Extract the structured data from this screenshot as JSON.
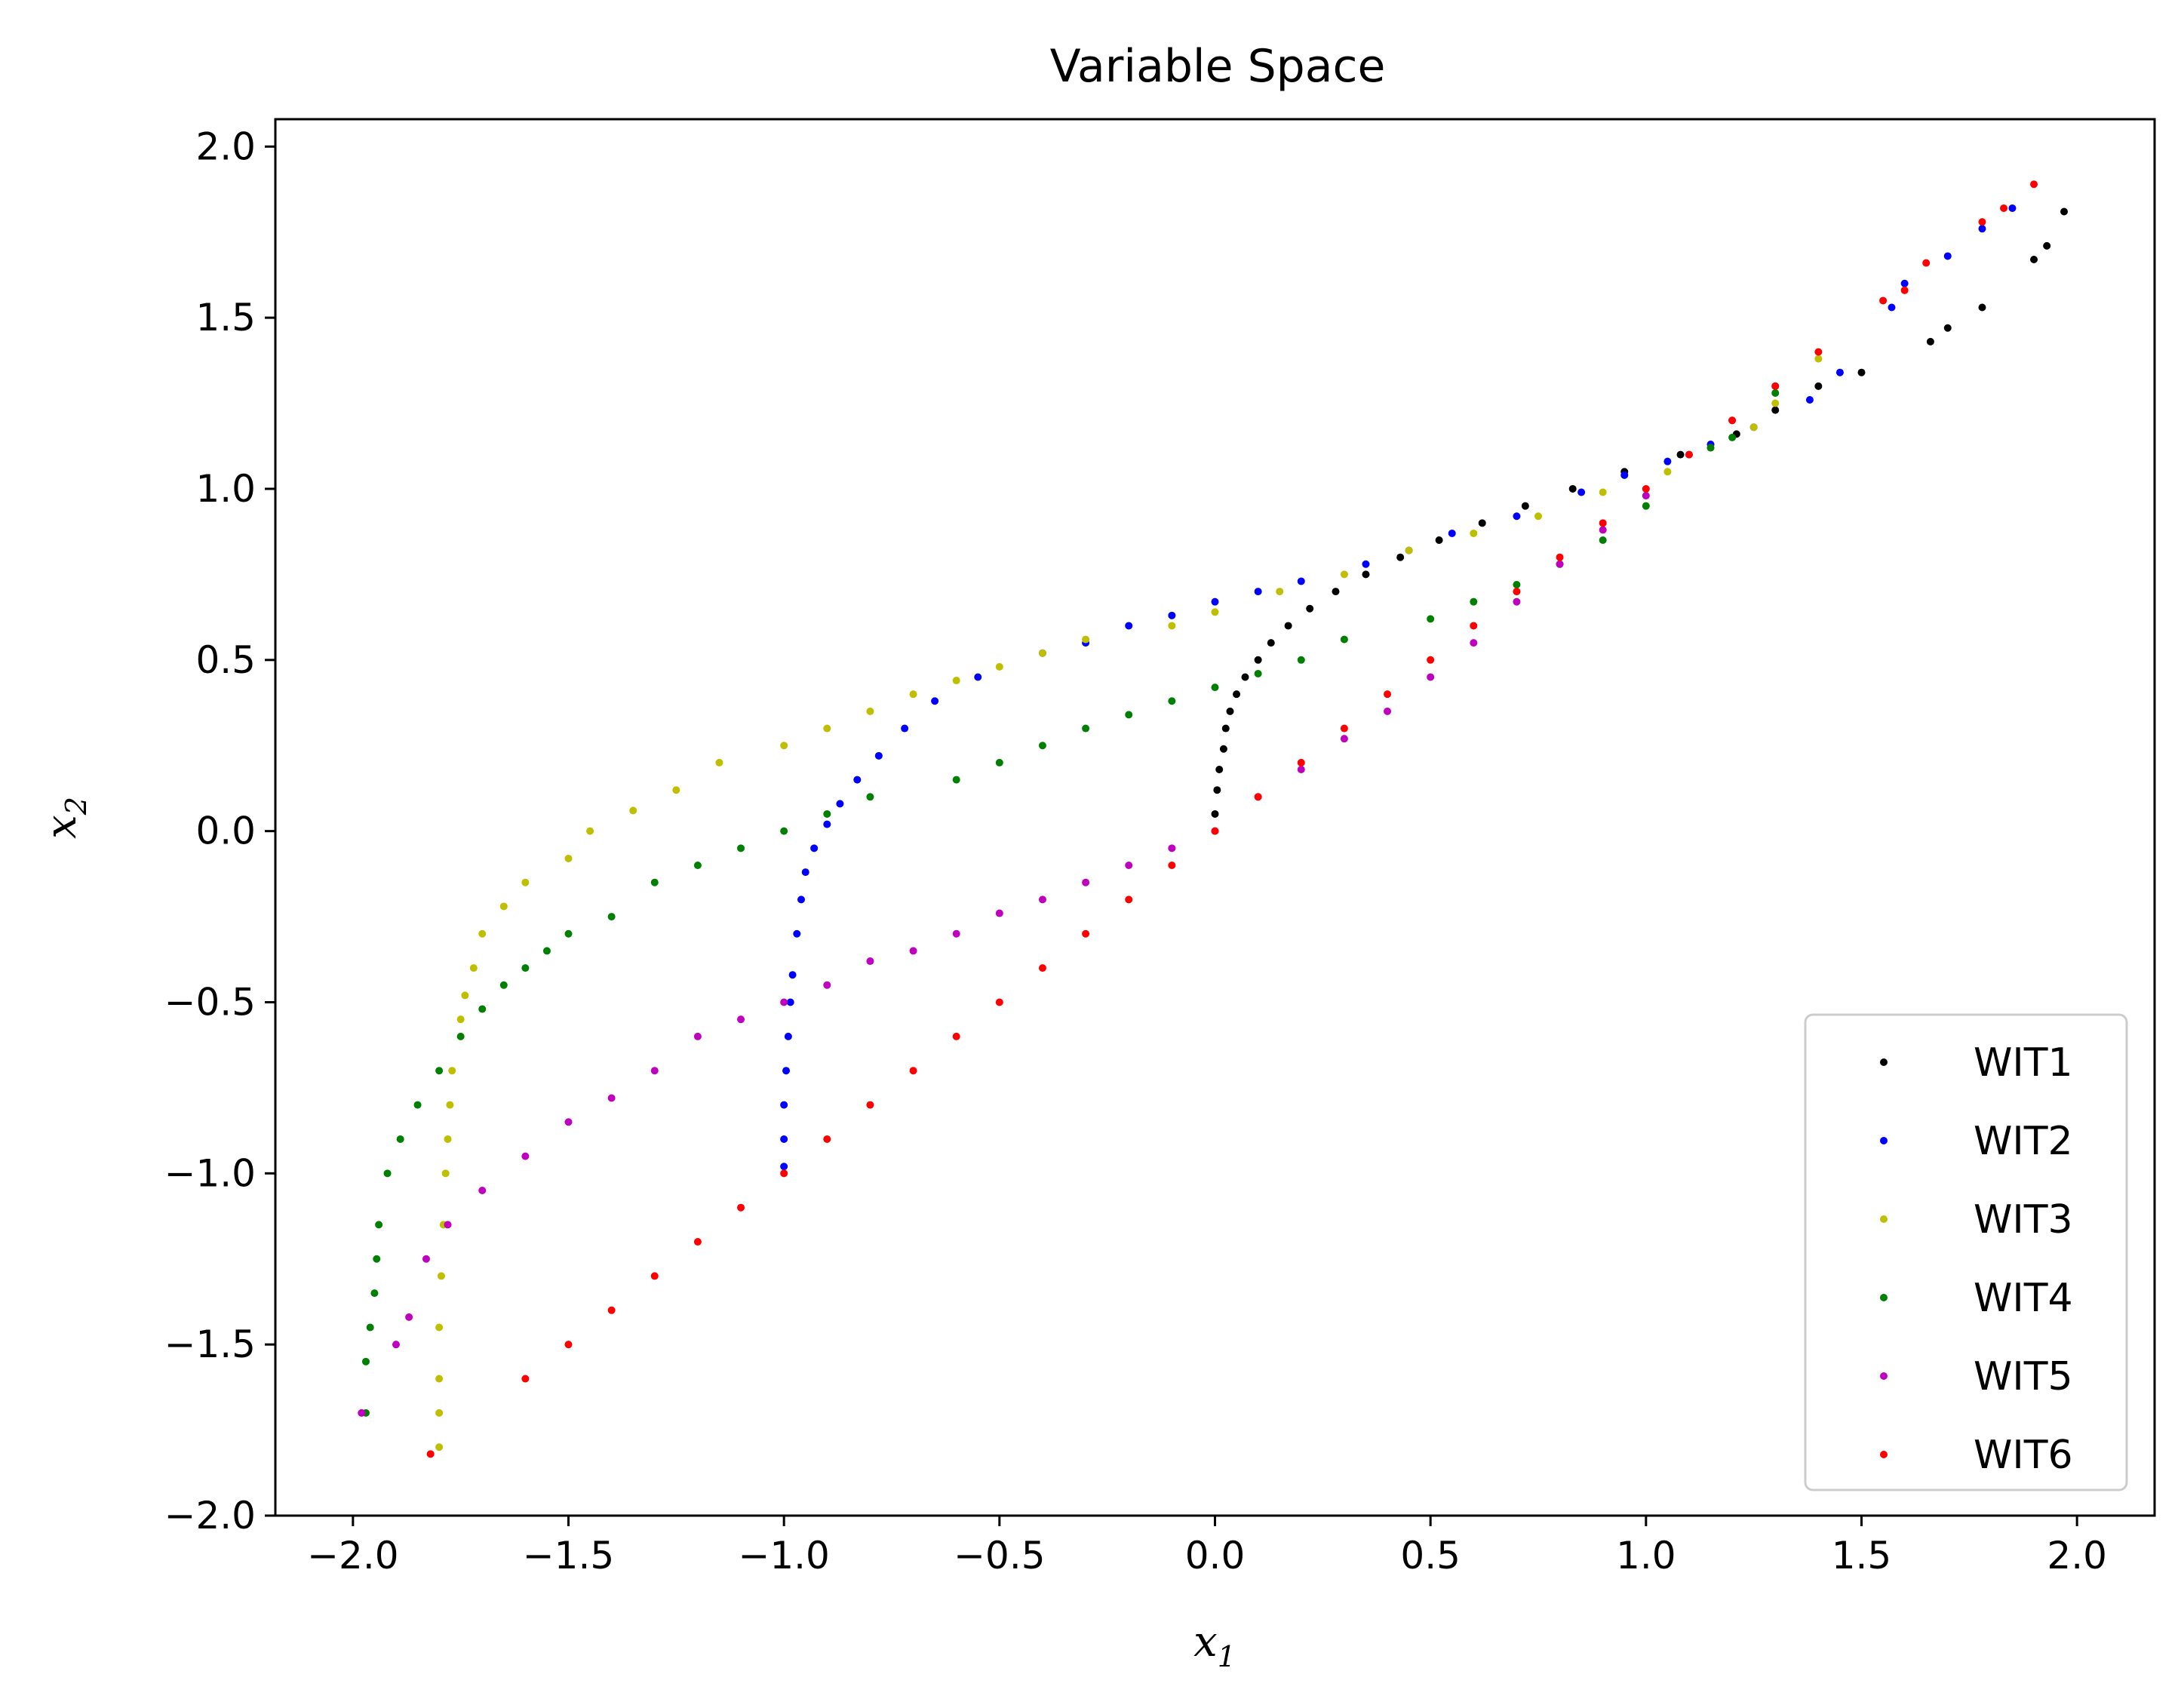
{
  "chart_data": {
    "type": "scatter",
    "title": "Variable Space",
    "xlabel": {
      "base": "x",
      "sub": "1"
    },
    "ylabel": {
      "base": "x",
      "sub": "2"
    },
    "xlim": [
      -2.18,
      2.18
    ],
    "ylim": [
      -2.0,
      2.08
    ],
    "xticks": [
      -2.0,
      -1.5,
      -1.0,
      -0.5,
      0.0,
      0.5,
      1.0,
      1.5,
      2.0
    ],
    "yticks": [
      -2.0,
      -1.5,
      -1.0,
      -0.5,
      0.0,
      0.5,
      1.0,
      1.5,
      2.0
    ],
    "xtick_labels": [
      "−2.0",
      "−1.5",
      "−1.0",
      "−0.5",
      "0.0",
      "0.5",
      "1.0",
      "1.5",
      "2.0"
    ],
    "ytick_labels": [
      "−2.0",
      "−1.5",
      "−1.0",
      "−0.5",
      "0.0",
      "0.5",
      "1.0",
      "1.5",
      "2.0"
    ],
    "grid": false,
    "legend_position": "lower-right",
    "series": [
      {
        "name": "WIT1",
        "color": "#000000",
        "points": [
          [
            0.0,
            0.05
          ],
          [
            0.005,
            0.12
          ],
          [
            0.01,
            0.18
          ],
          [
            0.02,
            0.24
          ],
          [
            0.025,
            0.3
          ],
          [
            0.035,
            0.35
          ],
          [
            0.05,
            0.4
          ],
          [
            0.07,
            0.45
          ],
          [
            0.1,
            0.5
          ],
          [
            0.13,
            0.55
          ],
          [
            0.17,
            0.6
          ],
          [
            0.22,
            0.65
          ],
          [
            0.28,
            0.7
          ],
          [
            0.35,
            0.75
          ],
          [
            0.43,
            0.8
          ],
          [
            0.52,
            0.85
          ],
          [
            0.62,
            0.9
          ],
          [
            0.72,
            0.95
          ],
          [
            0.83,
            1.0
          ],
          [
            0.95,
            1.05
          ],
          [
            1.08,
            1.1
          ],
          [
            1.21,
            1.16
          ],
          [
            1.3,
            1.23
          ],
          [
            1.4,
            1.3
          ],
          [
            1.5,
            1.34
          ],
          [
            1.66,
            1.43
          ],
          [
            1.7,
            1.47
          ],
          [
            1.78,
            1.53
          ],
          [
            1.9,
            1.67
          ],
          [
            1.93,
            1.71
          ],
          [
            1.97,
            1.81
          ]
        ]
      },
      {
        "name": "WIT2",
        "color": "#0000ff",
        "points": [
          [
            -1.0,
            -0.98
          ],
          [
            -1.0,
            -0.9
          ],
          [
            -1.0,
            -0.8
          ],
          [
            -0.995,
            -0.7
          ],
          [
            -0.99,
            -0.6
          ],
          [
            -0.985,
            -0.5
          ],
          [
            -0.98,
            -0.42
          ],
          [
            -0.97,
            -0.3
          ],
          [
            -0.96,
            -0.2
          ],
          [
            -0.95,
            -0.12
          ],
          [
            -0.93,
            -0.05
          ],
          [
            -0.9,
            0.02
          ],
          [
            -0.87,
            0.08
          ],
          [
            -0.83,
            0.15
          ],
          [
            -0.78,
            0.22
          ],
          [
            -0.72,
            0.3
          ],
          [
            -0.65,
            0.38
          ],
          [
            -0.55,
            0.45
          ],
          [
            -0.4,
            0.52
          ],
          [
            -0.3,
            0.55
          ],
          [
            -0.2,
            0.6
          ],
          [
            -0.1,
            0.63
          ],
          [
            0.0,
            0.67
          ],
          [
            0.1,
            0.7
          ],
          [
            0.2,
            0.73
          ],
          [
            0.35,
            0.78
          ],
          [
            0.45,
            0.82
          ],
          [
            0.55,
            0.87
          ],
          [
            0.7,
            0.92
          ],
          [
            0.85,
            0.99
          ],
          [
            0.95,
            1.04
          ],
          [
            1.05,
            1.08
          ],
          [
            1.15,
            1.13
          ],
          [
            1.25,
            1.18
          ],
          [
            1.38,
            1.26
          ],
          [
            1.45,
            1.34
          ],
          [
            1.57,
            1.53
          ],
          [
            1.6,
            1.6
          ],
          [
            1.7,
            1.68
          ],
          [
            1.78,
            1.76
          ],
          [
            1.85,
            1.82
          ]
        ]
      },
      {
        "name": "WIT3",
        "color": "#bfbf00",
        "points": [
          [
            -1.8,
            -1.8
          ],
          [
            -1.8,
            -1.7
          ],
          [
            -1.8,
            -1.6
          ],
          [
            -1.8,
            -1.45
          ],
          [
            -1.795,
            -1.3
          ],
          [
            -1.79,
            -1.15
          ],
          [
            -1.785,
            -1.0
          ],
          [
            -1.78,
            -0.9
          ],
          [
            -1.775,
            -0.8
          ],
          [
            -1.77,
            -0.7
          ],
          [
            -1.75,
            -0.55
          ],
          [
            -1.74,
            -0.48
          ],
          [
            -1.72,
            -0.4
          ],
          [
            -1.7,
            -0.3
          ],
          [
            -1.65,
            -0.22
          ],
          [
            -1.6,
            -0.15
          ],
          [
            -1.5,
            -0.08
          ],
          [
            -1.45,
            0.0
          ],
          [
            -1.35,
            0.06
          ],
          [
            -1.25,
            0.12
          ],
          [
            -1.15,
            0.2
          ],
          [
            -1.0,
            0.25
          ],
          [
            -0.9,
            0.3
          ],
          [
            -0.8,
            0.35
          ],
          [
            -0.7,
            0.4
          ],
          [
            -0.6,
            0.44
          ],
          [
            -0.5,
            0.48
          ],
          [
            -0.4,
            0.52
          ],
          [
            -0.3,
            0.56
          ],
          [
            -0.1,
            0.6
          ],
          [
            0.0,
            0.64
          ],
          [
            0.15,
            0.7
          ],
          [
            0.3,
            0.75
          ],
          [
            0.45,
            0.82
          ],
          [
            0.6,
            0.87
          ],
          [
            0.75,
            0.92
          ],
          [
            0.9,
            0.99
          ],
          [
            1.05,
            1.05
          ],
          [
            1.15,
            1.12
          ],
          [
            1.25,
            1.18
          ],
          [
            1.3,
            1.25
          ],
          [
            1.4,
            1.38
          ]
        ]
      },
      {
        "name": "WIT4",
        "color": "#008000",
        "points": [
          [
            -1.97,
            -1.7
          ],
          [
            -1.97,
            -1.55
          ],
          [
            -1.96,
            -1.45
          ],
          [
            -1.95,
            -1.35
          ],
          [
            -1.945,
            -1.25
          ],
          [
            -1.94,
            -1.15
          ],
          [
            -1.92,
            -1.0
          ],
          [
            -1.89,
            -0.9
          ],
          [
            -1.85,
            -0.8
          ],
          [
            -1.8,
            -0.7
          ],
          [
            -1.75,
            -0.6
          ],
          [
            -1.7,
            -0.52
          ],
          [
            -1.65,
            -0.45
          ],
          [
            -1.6,
            -0.4
          ],
          [
            -1.55,
            -0.35
          ],
          [
            -1.5,
            -0.3
          ],
          [
            -1.4,
            -0.25
          ],
          [
            -1.3,
            -0.15
          ],
          [
            -1.2,
            -0.1
          ],
          [
            -1.1,
            -0.05
          ],
          [
            -1.0,
            0.0
          ],
          [
            -0.9,
            0.05
          ],
          [
            -0.8,
            0.1
          ],
          [
            -0.6,
            0.15
          ],
          [
            -0.5,
            0.2
          ],
          [
            -0.4,
            0.25
          ],
          [
            -0.3,
            0.3
          ],
          [
            -0.2,
            0.34
          ],
          [
            -0.1,
            0.38
          ],
          [
            0.0,
            0.42
          ],
          [
            0.1,
            0.46
          ],
          [
            0.2,
            0.5
          ],
          [
            0.3,
            0.56
          ],
          [
            0.5,
            0.62
          ],
          [
            0.6,
            0.67
          ],
          [
            0.7,
            0.72
          ],
          [
            0.8,
            0.78
          ],
          [
            0.9,
            0.85
          ],
          [
            1.0,
            0.95
          ],
          [
            1.15,
            1.12
          ],
          [
            1.2,
            1.15
          ],
          [
            1.3,
            1.28
          ]
        ]
      },
      {
        "name": "WIT5",
        "color": "#bf00bf",
        "points": [
          [
            -1.98,
            -1.7
          ],
          [
            -1.9,
            -1.5
          ],
          [
            -1.87,
            -1.42
          ],
          [
            -1.83,
            -1.25
          ],
          [
            -1.78,
            -1.15
          ],
          [
            -1.7,
            -1.05
          ],
          [
            -1.6,
            -0.95
          ],
          [
            -1.5,
            -0.85
          ],
          [
            -1.4,
            -0.78
          ],
          [
            -1.3,
            -0.7
          ],
          [
            -1.2,
            -0.6
          ],
          [
            -1.1,
            -0.55
          ],
          [
            -1.0,
            -0.5
          ],
          [
            -0.9,
            -0.45
          ],
          [
            -0.8,
            -0.38
          ],
          [
            -0.7,
            -0.35
          ],
          [
            -0.6,
            -0.3
          ],
          [
            -0.5,
            -0.24
          ],
          [
            -0.4,
            -0.2
          ],
          [
            -0.3,
            -0.15
          ],
          [
            -0.2,
            -0.1
          ],
          [
            -0.1,
            -0.05
          ],
          [
            0.0,
            0.0
          ],
          [
            0.1,
            0.1
          ],
          [
            0.2,
            0.18
          ],
          [
            0.3,
            0.27
          ],
          [
            0.4,
            0.35
          ],
          [
            0.5,
            0.45
          ],
          [
            0.6,
            0.55
          ],
          [
            0.7,
            0.67
          ],
          [
            0.8,
            0.78
          ],
          [
            0.9,
            0.88
          ],
          [
            1.0,
            0.98
          ],
          [
            1.1,
            1.1
          ],
          [
            1.2,
            1.2
          ],
          [
            1.3,
            1.3
          ]
        ]
      },
      {
        "name": "WIT6",
        "color": "#ff0000",
        "points": [
          [
            -1.82,
            -1.82
          ],
          [
            -1.6,
            -1.6
          ],
          [
            -1.5,
            -1.5
          ],
          [
            -1.4,
            -1.4
          ],
          [
            -1.3,
            -1.3
          ],
          [
            -1.2,
            -1.2
          ],
          [
            -1.1,
            -1.1
          ],
          [
            -1.0,
            -1.0
          ],
          [
            -0.9,
            -0.9
          ],
          [
            -0.8,
            -0.8
          ],
          [
            -0.7,
            -0.7
          ],
          [
            -0.6,
            -0.6
          ],
          [
            -0.5,
            -0.5
          ],
          [
            -0.4,
            -0.4
          ],
          [
            -0.3,
            -0.3
          ],
          [
            -0.2,
            -0.2
          ],
          [
            -0.1,
            -0.1
          ],
          [
            0.0,
            0.0
          ],
          [
            0.1,
            0.1
          ],
          [
            0.2,
            0.2
          ],
          [
            0.3,
            0.3
          ],
          [
            0.4,
            0.4
          ],
          [
            0.5,
            0.5
          ],
          [
            0.6,
            0.6
          ],
          [
            0.7,
            0.7
          ],
          [
            0.8,
            0.8
          ],
          [
            0.9,
            0.9
          ],
          [
            1.0,
            1.0
          ],
          [
            1.1,
            1.1
          ],
          [
            1.2,
            1.2
          ],
          [
            1.3,
            1.3
          ],
          [
            1.4,
            1.4
          ],
          [
            1.55,
            1.55
          ],
          [
            1.6,
            1.58
          ],
          [
            1.65,
            1.66
          ],
          [
            1.78,
            1.78
          ],
          [
            1.83,
            1.82
          ],
          [
            1.9,
            1.89
          ]
        ]
      }
    ]
  }
}
